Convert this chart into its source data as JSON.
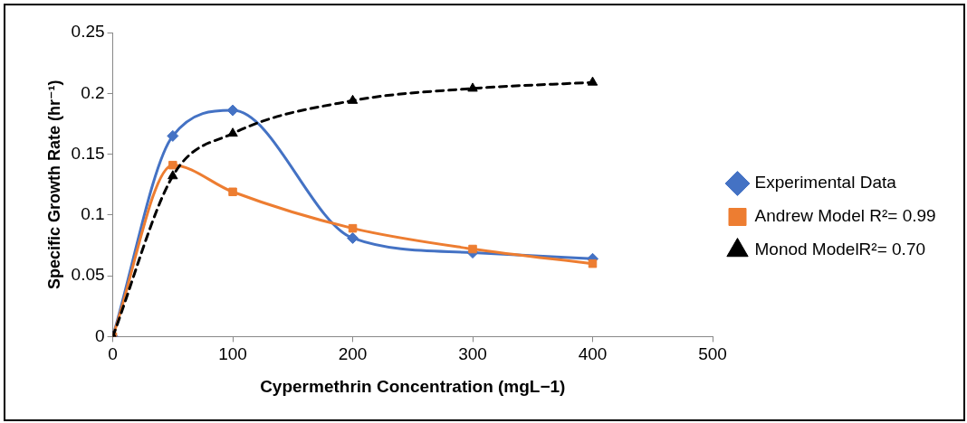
{
  "chart_data": {
    "type": "line",
    "xlabel": "Cypermethrin Concentration (mgL−1)",
    "ylabel": "Specific Growth Rate (hr⁻¹)",
    "x": [
      0,
      50,
      100,
      200,
      300,
      400
    ],
    "series": [
      {
        "name": "Experimental Data",
        "color": "#4472c4",
        "values": [
          0,
          0.165,
          0.186,
          0.081,
          0.069,
          0.064
        ],
        "marker": "diamond",
        "line_style": "solid"
      },
      {
        "name": "Andrew Model R²= 0.99",
        "color": "#ed7d31",
        "values": [
          0,
          0.141,
          0.119,
          0.089,
          0.072,
          0.06
        ],
        "marker": "square",
        "line_style": "solid"
      },
      {
        "name": "Monod ModelR²= 0.70",
        "color": "#000000",
        "values": [
          0,
          0.132,
          0.167,
          0.194,
          0.204,
          0.209
        ],
        "marker": "triangle",
        "line_style": "dashed"
      }
    ],
    "xlim": [
      0,
      500
    ],
    "xticks": [
      0,
      100,
      200,
      300,
      400,
      500
    ],
    "ylim": [
      0,
      0.25
    ],
    "yticks": [
      0,
      0.05,
      0.1,
      0.15,
      0.2,
      0.25
    ],
    "grid": false,
    "legend": "right"
  }
}
